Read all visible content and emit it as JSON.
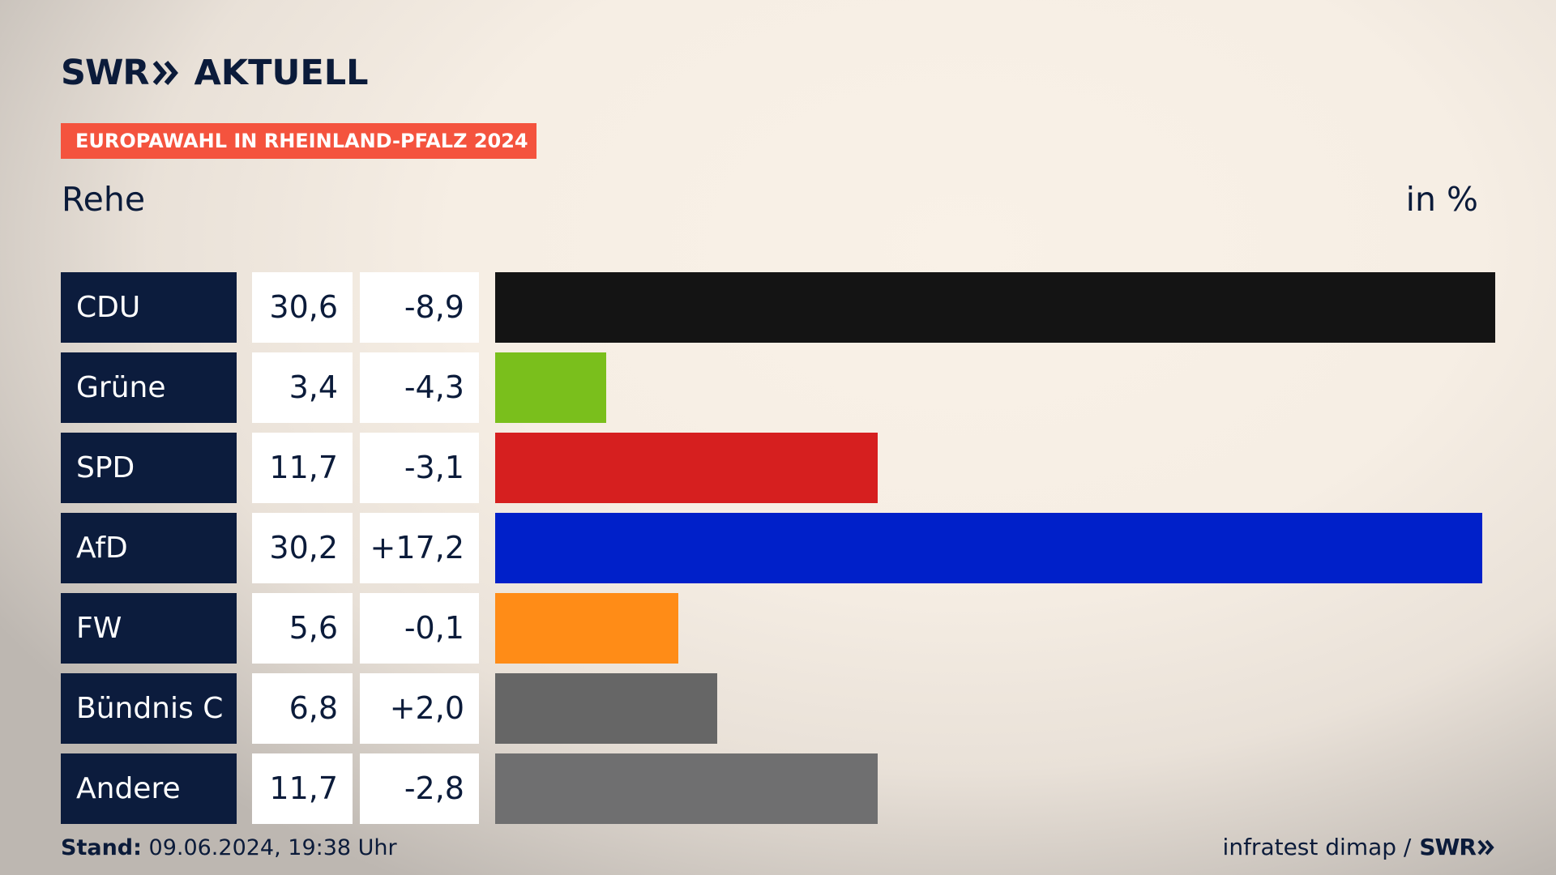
{
  "header": {
    "logo_swr": "SWR",
    "logo_aktuell": "AKTUELL",
    "tag": "EUROPAWAHL IN RHEINLAND-PFALZ 2024",
    "subtitle": "Rehe",
    "unit": "in %"
  },
  "colors": {
    "navy": "#0c1c3d",
    "tag_red": "#f4533e"
  },
  "chart_data": {
    "type": "bar",
    "orientation": "horizontal",
    "title": "Rehe",
    "unit": "in %",
    "categories": [
      "CDU",
      "Grüne",
      "SPD",
      "AfD",
      "FW",
      "Bündnis C",
      "Andere"
    ],
    "values": [
      30.6,
      3.4,
      11.7,
      30.2,
      5.6,
      6.8,
      11.7
    ],
    "value_labels": [
      "30,6",
      "3,4",
      "11,7",
      "30,2",
      "5,6",
      "6,8",
      "11,7"
    ],
    "diff_labels": [
      "-8,9",
      "-4,3",
      "-3,1",
      "+17,2",
      "-0,1",
      "+2,0",
      "-2,8"
    ],
    "colors": [
      "#141414",
      "#7abf1c",
      "#d61f1f",
      "#0020c9",
      "#ff8c17",
      "#666666",
      "#6f6f70"
    ],
    "xlim": [
      0,
      30.6
    ]
  },
  "footer": {
    "stand_label": "Stand:",
    "stand_value": "09.06.2024, 19:38 Uhr",
    "source": "infratest dimap /",
    "source_logo": "SWR"
  }
}
